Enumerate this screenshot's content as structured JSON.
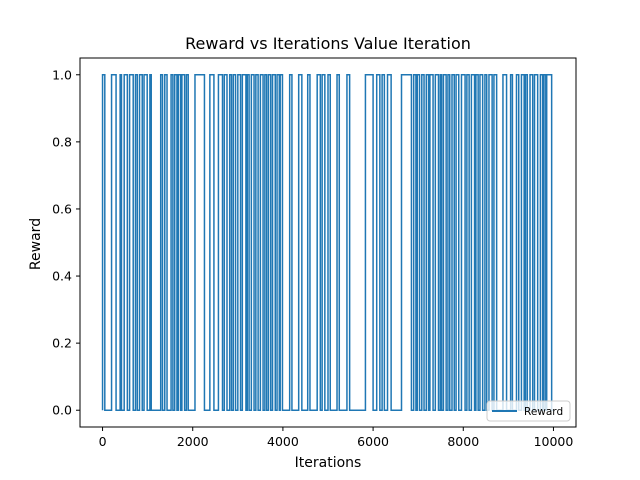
{
  "chart_data": {
    "type": "line",
    "title": "Reward vs Iterations Value Iteration",
    "xlabel": "Iterations",
    "ylabel": "Reward",
    "xlim": [
      -500,
      10500
    ],
    "ylim": [
      -0.05,
      1.05
    ],
    "x_ticks": [
      0,
      2000,
      4000,
      6000,
      8000,
      10000
    ],
    "y_ticks": [
      0.0,
      0.2,
      0.4,
      0.6,
      0.8,
      1.0
    ],
    "x_tick_labels": [
      "0",
      "2000",
      "4000",
      "6000",
      "8000",
      "10000"
    ],
    "y_tick_labels": [
      "0.0",
      "0.2",
      "0.4",
      "0.6",
      "0.8",
      "1.0"
    ],
    "grid": false,
    "legend_position": "lower-right",
    "line_color": "#1f77b4",
    "series": [
      {
        "name": "Reward",
        "pulse_intervals": [
          [
            0,
            50
          ],
          [
            200,
            300
          ],
          [
            390,
            420
          ],
          [
            480,
            550
          ],
          [
            600,
            680
          ],
          [
            730,
            770
          ],
          [
            820,
            880
          ],
          [
            920,
            990
          ],
          [
            1050,
            1080
          ],
          [
            1290,
            1330
          ],
          [
            1380,
            1430
          ],
          [
            1520,
            1560
          ],
          [
            1600,
            1650
          ],
          [
            1680,
            1730
          ],
          [
            1760,
            1820
          ],
          [
            1860,
            1900
          ],
          [
            2050,
            2260
          ],
          [
            2380,
            2470
          ],
          [
            2570,
            2660
          ],
          [
            2700,
            2760
          ],
          [
            2820,
            2860
          ],
          [
            2900,
            2950
          ],
          [
            3000,
            3060
          ],
          [
            3100,
            3180
          ],
          [
            3210,
            3250
          ],
          [
            3300,
            3360
          ],
          [
            3400,
            3450
          ],
          [
            3500,
            3560
          ],
          [
            3600,
            3640
          ],
          [
            3680,
            3730
          ],
          [
            3770,
            3830
          ],
          [
            3870,
            3920
          ],
          [
            3940,
            3990
          ],
          [
            4150,
            4200
          ],
          [
            4350,
            4420
          ],
          [
            4550,
            4600
          ],
          [
            4760,
            4830
          ],
          [
            4870,
            4930
          ],
          [
            5000,
            5050
          ],
          [
            5200,
            5250
          ],
          [
            5420,
            5480
          ],
          [
            5830,
            6000
          ],
          [
            6080,
            6150
          ],
          [
            6200,
            6250
          ],
          [
            6320,
            6400
          ],
          [
            6630,
            6850
          ],
          [
            6900,
            6950
          ],
          [
            6980,
            7030
          ],
          [
            7080,
            7130
          ],
          [
            7180,
            7230
          ],
          [
            7260,
            7330
          ],
          [
            7380,
            7450
          ],
          [
            7490,
            7520
          ],
          [
            7560,
            7620
          ],
          [
            7660,
            7700
          ],
          [
            7750,
            7800
          ],
          [
            7840,
            7900
          ],
          [
            7960,
            8040
          ],
          [
            8080,
            8130
          ],
          [
            8180,
            8250
          ],
          [
            8280,
            8330
          ],
          [
            8370,
            8430
          ],
          [
            8480,
            8520
          ],
          [
            8570,
            8640
          ],
          [
            8680,
            8740
          ],
          [
            8880,
            8960
          ],
          [
            9050,
            9090
          ],
          [
            9180,
            9230
          ],
          [
            9290,
            9350
          ],
          [
            9380,
            9420
          ],
          [
            9480,
            9540
          ],
          [
            9580,
            9650
          ],
          [
            9710,
            9760
          ],
          [
            9790,
            9830
          ],
          [
            9850,
            9960
          ]
        ],
        "x_range": [
          0,
          9999
        ]
      }
    ]
  }
}
